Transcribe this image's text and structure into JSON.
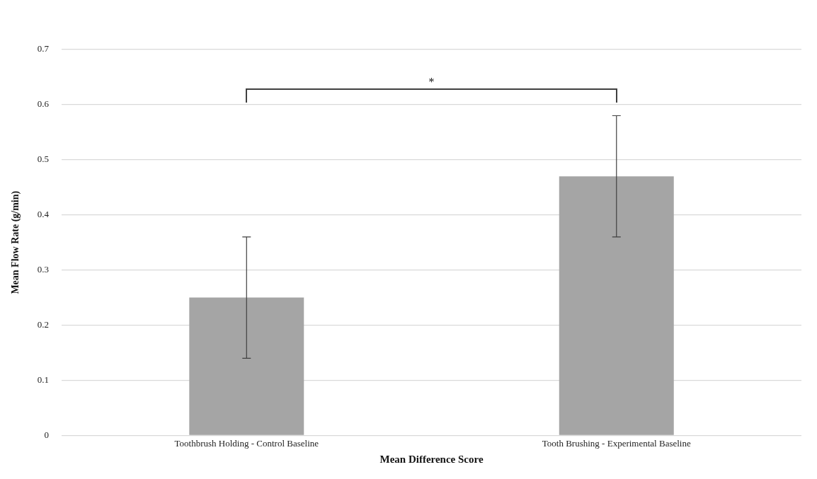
{
  "chart_data": {
    "type": "bar",
    "xlabel": "Mean Difference Score",
    "ylabel": "Mean Flow Rate (g/min)",
    "categories": [
      "Toothbrush Holding - Control Baseline",
      "Tooth Brushing - Experimental Baseline"
    ],
    "values": [
      0.25,
      0.47
    ],
    "errors": [
      0.11,
      0.11
    ],
    "color": "#a5a5a5",
    "ylim": [
      0,
      0.7
    ],
    "yticks": [
      0,
      0.1,
      0.2,
      0.3,
      0.4,
      0.5,
      0.6,
      0.7
    ],
    "grid": "y",
    "annotations": [
      "*"
    ]
  }
}
